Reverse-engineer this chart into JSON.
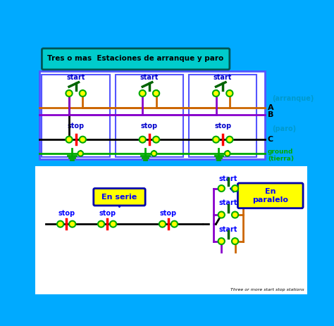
{
  "bg_color": "#00aaff",
  "fig_bg": "#00aaff",
  "title_text": "Tres o mas  Estaciones de arranque y paro",
  "title_box_color": "#00cccc",
  "title_text_color": "#000000",
  "main_box_color": "#5555ff",
  "start_color": "#0000cc",
  "stop_color": "#0000cc",
  "wire_A_color": "#cc6600",
  "wire_B_color": "#8800cc",
  "wire_C_color": "#000000",
  "wire_green_color": "#00aa00",
  "node_color": "#ffff00",
  "node_outline": "#00aa00",
  "stop_bar_color": "#ff0000",
  "ground_color": "#00aa00",
  "label_A": "A",
  "label_B": "B",
  "label_C": "C",
  "label_arranque": "(arranque)",
  "label_paro": "(paro)",
  "label_ground": "ground\n(tierra)",
  "en_serie_text": "En serie",
  "en_paralelo_text": "En\nparalelo",
  "footer_text": "Three or more start stop stations",
  "serie_box_color": "#ffff00",
  "serie_box_outline": "#0000aa",
  "paralelo_box_color": "#ffff00",
  "paralelo_box_outline": "#0000aa"
}
